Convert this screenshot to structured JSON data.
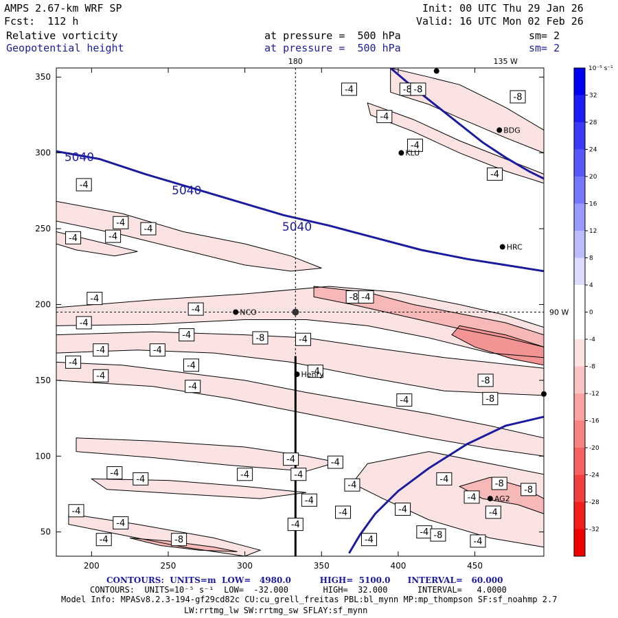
{
  "header": {
    "title": "AMPS 2.67-km WRF SP",
    "fcst": "Fcst:  112 h",
    "init": "Init: 00 UTC Thu 29 Jan 26",
    "valid": "Valid: 16 UTC Mon 02 Feb 26",
    "field1": "Relative vorticity",
    "field2": "Geopotential height",
    "press1": "at pressure =  500 hPa",
    "press2": "at pressure =  500 hPa",
    "sm1": "sm= 2",
    "sm2": "sm= 2"
  },
  "footer": {
    "line1": "CONTOURS:  UNITS=m  LOW=   4980.0          HIGH=  5100.0      INTERVAL=   60.000",
    "line2": "CONTOURS:  UNITS=10⁻⁵ s⁻¹  LOW=  -32.000       HIGH=  32.000      INTERVAL=   4.0000",
    "line3": "Model Info: MPASv8.2.3-194-gf29cd82c CU:cu_grell_freitas PBL:bl_mynn MP:mp_thompson SF:sf_noahmp 2.7",
    "line4": "LW:rrtmg_lw SW:rrtmg_sw SFLAY:sf_mynn"
  },
  "chart_data": {
    "type": "contour",
    "xlim": [
      177,
      495
    ],
    "ylim": [
      34,
      356
    ],
    "x_ticks": [
      200,
      250,
      300,
      350,
      400,
      450
    ],
    "y_ticks": [
      50,
      100,
      150,
      200,
      250,
      300,
      350
    ],
    "top_labels": [
      {
        "text": "180",
        "x": 333
      },
      {
        "text": "135 W",
        "x": 470
      }
    ],
    "right_label": {
      "text": "90 W",
      "y": 195
    },
    "crosshair": {
      "x": 333,
      "y": 195
    },
    "section_line": {
      "x": 333,
      "y_from": 34,
      "y_to": 166
    },
    "height_contours": [
      {
        "label": "5040",
        "points": [
          [
            177,
            301
          ],
          [
            205,
            296
          ],
          [
            235,
            286
          ],
          [
            265,
            277
          ],
          [
            295,
            268
          ],
          [
            325,
            259
          ],
          [
            355,
            252
          ],
          [
            385,
            244
          ],
          [
            415,
            236
          ],
          [
            445,
            230
          ],
          [
            470,
            226
          ],
          [
            495,
            222
          ]
        ]
      },
      {
        "label": "",
        "points": [
          [
            368,
            36
          ],
          [
            375,
            48
          ],
          [
            385,
            62
          ],
          [
            400,
            77
          ],
          [
            420,
            92
          ],
          [
            445,
            108
          ],
          [
            470,
            120
          ],
          [
            495,
            126
          ]
        ]
      },
      {
        "label": "",
        "points": [
          [
            395,
            356
          ],
          [
            410,
            343
          ],
          [
            425,
            331
          ],
          [
            440,
            319
          ],
          [
            455,
            307
          ],
          [
            470,
            297
          ],
          [
            485,
            288
          ],
          [
            495,
            283
          ]
        ]
      }
    ],
    "height_labels": [
      {
        "text": "5040",
        "x": 192,
        "y": 297
      },
      {
        "text": "5040",
        "x": 262,
        "y": 275
      },
      {
        "text": "5040",
        "x": 334,
        "y": 251
      }
    ],
    "vorticity_bands": [
      {
        "points": [
          [
            177,
            198
          ],
          [
            240,
            203
          ],
          [
            300,
            207
          ],
          [
            355,
            212
          ],
          [
            400,
            208
          ],
          [
            440,
            200
          ],
          [
            470,
            193
          ],
          [
            495,
            185
          ],
          [
            495,
            165
          ],
          [
            460,
            168
          ],
          [
            420,
            178
          ],
          [
            380,
            186
          ],
          [
            340,
            190
          ],
          [
            300,
            190
          ],
          [
            240,
            187
          ],
          [
            177,
            186
          ]
        ],
        "shade": -4
      },
      {
        "points": [
          [
            177,
            180
          ],
          [
            240,
            182
          ],
          [
            300,
            180
          ],
          [
            340,
            178
          ],
          [
            380,
            172
          ],
          [
            430,
            165
          ],
          [
            495,
            158
          ],
          [
            495,
            140
          ],
          [
            430,
            143
          ],
          [
            380,
            152
          ],
          [
            330,
            162
          ],
          [
            280,
            168
          ],
          [
            230,
            170
          ],
          [
            177,
            168
          ]
        ],
        "shade": -4
      },
      {
        "points": [
          [
            177,
            162
          ],
          [
            220,
            160
          ],
          [
            260,
            155
          ],
          [
            300,
            150
          ],
          [
            340,
            142
          ],
          [
            380,
            135
          ],
          [
            420,
            128
          ],
          [
            460,
            120
          ],
          [
            495,
            112
          ],
          [
            495,
            100
          ],
          [
            460,
            105
          ],
          [
            420,
            112
          ],
          [
            380,
            120
          ],
          [
            340,
            128
          ],
          [
            290,
            138
          ],
          [
            240,
            146
          ],
          [
            177,
            150
          ]
        ],
        "shade": -4
      },
      {
        "points": [
          [
            177,
            268
          ],
          [
            220,
            260
          ],
          [
            260,
            248
          ],
          [
            300,
            240
          ],
          [
            330,
            232
          ],
          [
            350,
            224
          ],
          [
            330,
            222
          ],
          [
            300,
            226
          ],
          [
            260,
            236
          ],
          [
            220,
            246
          ],
          [
            177,
            255
          ]
        ],
        "shade": -4
      },
      {
        "points": [
          [
            177,
            248
          ],
          [
            210,
            240
          ],
          [
            230,
            235
          ],
          [
            215,
            232
          ],
          [
            190,
            236
          ],
          [
            177,
            240
          ]
        ],
        "shade": -4
      },
      {
        "points": [
          [
            190,
            112
          ],
          [
            240,
            110
          ],
          [
            300,
            106
          ],
          [
            340,
            100
          ],
          [
            360,
            96
          ],
          [
            340,
            90
          ],
          [
            290,
            94
          ],
          [
            240,
            99
          ],
          [
            190,
            103
          ]
        ],
        "shade": -4
      },
      {
        "points": [
          [
            200,
            85
          ],
          [
            250,
            84
          ],
          [
            300,
            80
          ],
          [
            340,
            76
          ],
          [
            310,
            72
          ],
          [
            260,
            75
          ],
          [
            210,
            78
          ]
        ],
        "shade": -4
      },
      {
        "points": [
          [
            185,
            62
          ],
          [
            230,
            55
          ],
          [
            280,
            46
          ],
          [
            310,
            38
          ],
          [
            300,
            34
          ],
          [
            260,
            40
          ],
          [
            220,
            48
          ],
          [
            185,
            55
          ]
        ],
        "shade": -4
      },
      {
        "points": [
          [
            380,
            95
          ],
          [
            420,
            103
          ],
          [
            460,
            95
          ],
          [
            495,
            88
          ],
          [
            495,
            40
          ],
          [
            460,
            46
          ],
          [
            420,
            58
          ],
          [
            390,
            72
          ],
          [
            370,
            82
          ]
        ],
        "shade": -4
      },
      {
        "points": [
          [
            395,
            356
          ],
          [
            420,
            350
          ],
          [
            440,
            345
          ],
          [
            470,
            330
          ],
          [
            495,
            315
          ],
          [
            495,
            300
          ],
          [
            470,
            310
          ],
          [
            440,
            323
          ],
          [
            420,
            332
          ],
          [
            395,
            340
          ]
        ],
        "shade": -4
      },
      {
        "points": [
          [
            380,
            333
          ],
          [
            410,
            322
          ],
          [
            440,
            308
          ],
          [
            470,
            296
          ],
          [
            495,
            286
          ],
          [
            495,
            280
          ],
          [
            470,
            288
          ],
          [
            440,
            300
          ],
          [
            410,
            314
          ],
          [
            382,
            325
          ]
        ],
        "shade": -4
      },
      {
        "points": [
          [
            345,
            212
          ],
          [
            380,
            208
          ],
          [
            410,
            200
          ],
          [
            440,
            194
          ],
          [
            470,
            188
          ],
          [
            495,
            180
          ],
          [
            495,
            172
          ],
          [
            470,
            178
          ],
          [
            440,
            184
          ],
          [
            405,
            192
          ],
          [
            370,
            200
          ],
          [
            345,
            205
          ]
        ],
        "shade": -8
      },
      {
        "points": [
          [
            440,
            186
          ],
          [
            470,
            180
          ],
          [
            495,
            172
          ],
          [
            495,
            160
          ],
          [
            475,
            164
          ],
          [
            450,
            172
          ],
          [
            435,
            180
          ]
        ],
        "shade": -12
      },
      {
        "points": [
          [
            440,
            80
          ],
          [
            460,
            86
          ],
          [
            480,
            80
          ],
          [
            495,
            72
          ],
          [
            495,
            62
          ],
          [
            478,
            68
          ],
          [
            455,
            72
          ]
        ],
        "shade": -8
      },
      {
        "points": [
          [
            225,
            46
          ],
          [
            250,
            44
          ],
          [
            280,
            40
          ],
          [
            295,
            37
          ],
          [
            270,
            38
          ],
          [
            245,
            41
          ]
        ],
        "shade": -8
      }
    ],
    "vorticity_labels": [
      {
        "text": "-8",
        "x": 406,
        "y": 342
      },
      {
        "text": "-8",
        "x": 413,
        "y": 342
      },
      {
        "text": "-8",
        "x": 478,
        "y": 337
      },
      {
        "text": "-4",
        "x": 368,
        "y": 342
      },
      {
        "text": "-4",
        "x": 391,
        "y": 324
      },
      {
        "text": "-4",
        "x": 411,
        "y": 305
      },
      {
        "text": "-4",
        "x": 463,
        "y": 286
      },
      {
        "text": "-4",
        "x": 195,
        "y": 279
      },
      {
        "text": "-4",
        "x": 219,
        "y": 254
      },
      {
        "text": "-4",
        "x": 237,
        "y": 250
      },
      {
        "text": "-4",
        "x": 188,
        "y": 244
      },
      {
        "text": "-4",
        "x": 214,
        "y": 245
      },
      {
        "text": "-4",
        "x": 202,
        "y": 204
      },
      {
        "text": "-4",
        "x": 268,
        "y": 197
      },
      {
        "text": "-8",
        "x": 371,
        "y": 205
      },
      {
        "text": "-4",
        "x": 379,
        "y": 205
      },
      {
        "text": "-4",
        "x": 195,
        "y": 188
      },
      {
        "text": "-4",
        "x": 262,
        "y": 180
      },
      {
        "text": "-8",
        "x": 310,
        "y": 178
      },
      {
        "text": "-4",
        "x": 338,
        "y": 177
      },
      {
        "text": "-4",
        "x": 206,
        "y": 170
      },
      {
        "text": "-4",
        "x": 243,
        "y": 170
      },
      {
        "text": "-4",
        "x": 188,
        "y": 162
      },
      {
        "text": "-4",
        "x": 265,
        "y": 160
      },
      {
        "text": "-4",
        "x": 346,
        "y": 156
      },
      {
        "text": "-4",
        "x": 206,
        "y": 153
      },
      {
        "text": "-4",
        "x": 266,
        "y": 146
      },
      {
        "text": "-8",
        "x": 457,
        "y": 150
      },
      {
        "text": "-4",
        "x": 404,
        "y": 137
      },
      {
        "text": "-8",
        "x": 460,
        "y": 138
      },
      {
        "text": "-4",
        "x": 330,
        "y": 98
      },
      {
        "text": "-4",
        "x": 359,
        "y": 96
      },
      {
        "text": "-4",
        "x": 300,
        "y": 88
      },
      {
        "text": "-4",
        "x": 335,
        "y": 88
      },
      {
        "text": "-4",
        "x": 215,
        "y": 89
      },
      {
        "text": "-4",
        "x": 232,
        "y": 85
      },
      {
        "text": "-4",
        "x": 370,
        "y": 81
      },
      {
        "text": "-4",
        "x": 430,
        "y": 85
      },
      {
        "text": "-8",
        "x": 466,
        "y": 82
      },
      {
        "text": "-8",
        "x": 485,
        "y": 78
      },
      {
        "text": "-4",
        "x": 342,
        "y": 71
      },
      {
        "text": "-4",
        "x": 448,
        "y": 73
      },
      {
        "text": "-4",
        "x": 403,
        "y": 65
      },
      {
        "text": "-4",
        "x": 190,
        "y": 64
      },
      {
        "text": "-4",
        "x": 219,
        "y": 56
      },
      {
        "text": "-4",
        "x": 364,
        "y": 63
      },
      {
        "text": "-4",
        "x": 462,
        "y": 63
      },
      {
        "text": "-4",
        "x": 333,
        "y": 55
      },
      {
        "text": "-4",
        "x": 417,
        "y": 50
      },
      {
        "text": "-8",
        "x": 426,
        "y": 48
      },
      {
        "text": "-4",
        "x": 208,
        "y": 45
      },
      {
        "text": "-8",
        "x": 257,
        "y": 45
      },
      {
        "text": "-4",
        "x": 381,
        "y": 45
      },
      {
        "text": "-4",
        "x": 452,
        "y": 44
      }
    ],
    "stations": [
      {
        "name": "BDG",
        "x": 466,
        "y": 315
      },
      {
        "name": "KLU",
        "x": 402,
        "y": 300
      },
      {
        "name": "HRC",
        "x": 468,
        "y": 238
      },
      {
        "name": "NCO",
        "x": 294,
        "y": 195
      },
      {
        "name": "Henry",
        "x": 334,
        "y": 154
      },
      {
        "name": "AG2",
        "x": 460,
        "y": 72
      },
      {
        "name": "",
        "x": 495,
        "y": 141
      },
      {
        "name": "",
        "x": 425,
        "y": 354
      }
    ],
    "colorbar": {
      "title": "10⁻⁵ s⁻¹",
      "levels": [
        36,
        32,
        28,
        24,
        20,
        16,
        12,
        8,
        4,
        0,
        -4,
        -8,
        -12,
        -16,
        -20,
        -24,
        -28,
        -32,
        -36
      ],
      "tick_labels": [
        "32",
        "28",
        "24",
        "20",
        "16",
        "12",
        "8",
        "4",
        "0",
        "-4",
        "-8",
        "-12",
        "-16",
        "-20",
        "-24",
        "-28",
        "-32"
      ],
      "colors": [
        "#0000f5",
        "#1d1df7",
        "#3a3af8",
        "#5858fa",
        "#7777fb",
        "#9a9afc",
        "#bbbbfd",
        "#dcdcfe",
        "#ffffff",
        "#ffffff",
        "#fde2e2",
        "#fbc4c4",
        "#f9a3a3",
        "#f78282",
        "#f66060",
        "#f43f3f",
        "#f31f1f",
        "#f10000"
      ]
    }
  }
}
